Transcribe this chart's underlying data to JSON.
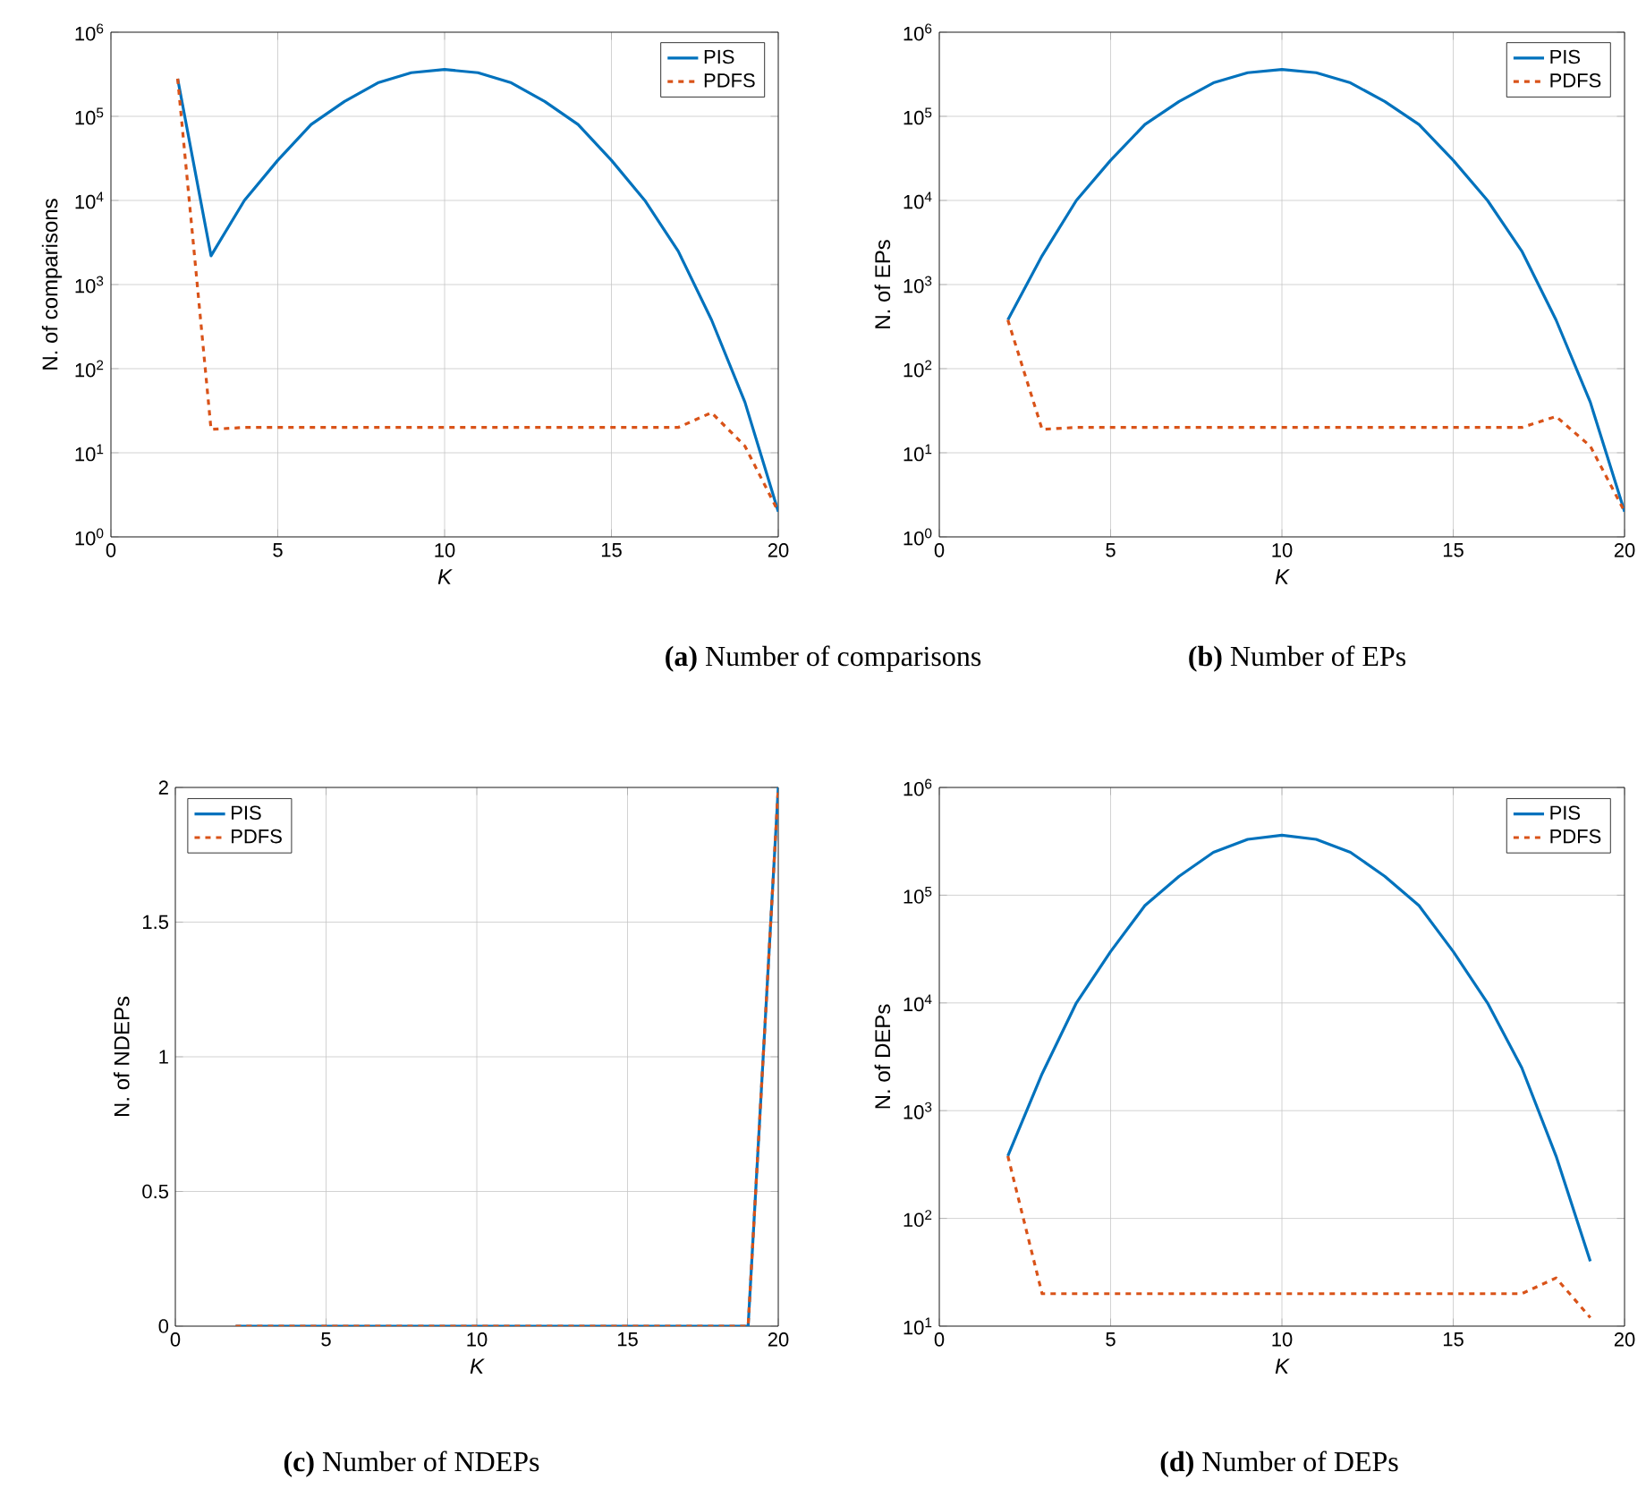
{
  "chart_data": [
    {
      "type": "line",
      "title": "**(a)** Number of comparisons",
      "xlabel": "K",
      "ylabel": "N. of comparisons",
      "x": [
        2,
        3,
        4,
        5,
        6,
        7,
        8,
        9,
        10,
        11,
        12,
        13,
        14,
        15,
        16,
        17,
        18,
        19,
        20
      ],
      "log": "y",
      "grid": true,
      "legend": "top right",
      "xlim": [
        0,
        20
      ],
      "xticks": [
        0,
        5,
        10,
        15,
        20
      ],
      "ylim": [
        1,
        1000000
      ],
      "yticks": [
        {
          "value": 1,
          "label": "10$^{0}$"
        },
        {
          "value": 10,
          "label": "10$^{1}$"
        },
        {
          "value": 100,
          "label": "10$^{2}$"
        },
        {
          "value": 1000,
          "label": "10$^{3}$"
        },
        {
          "value": 10000,
          "label": "10$^{4}$"
        },
        {
          "value": 100000,
          "label": "10$^{5}$"
        },
        {
          "value": 1000000,
          "label": "10$^{6}$"
        }
      ],
      "series": [
        {
          "name": "PIS",
          "color": "#0072bd",
          "line_style": "solid",
          "values": [
            280000,
            2200,
            10000,
            30000,
            80000,
            150000,
            250000,
            330000,
            360000,
            330000,
            250000,
            150000,
            80000,
            30000,
            10000,
            2500,
            380,
            40,
            2
          ]
        },
        {
          "name": "PDFS",
          "color": "#d95319",
          "line_style": "dashed",
          "values": [
            280000,
            19,
            20,
            20,
            20,
            20,
            20,
            20,
            20,
            20,
            20,
            20,
            20,
            20,
            20,
            20,
            30,
            12,
            2
          ]
        }
      ]
    },
    {
      "type": "line",
      "title": "**(b)** Number of EPs",
      "xlabel": "K",
      "ylabel": "N. of EPs",
      "x": [
        2,
        3,
        4,
        5,
        6,
        7,
        8,
        9,
        10,
        11,
        12,
        13,
        14,
        15,
        16,
        17,
        18,
        19,
        20
      ],
      "log": "y",
      "grid": true,
      "legend": "top right",
      "xlim": [
        0,
        20
      ],
      "xticks": [
        0,
        5,
        10,
        15,
        20
      ],
      "ylim": [
        1,
        1000000
      ],
      "yticks": [
        {
          "value": 1,
          "label": "10$^{0}$"
        },
        {
          "value": 10,
          "label": "10$^{1}$"
        },
        {
          "value": 100,
          "label": "10$^{2}$"
        },
        {
          "value": 1000,
          "label": "10$^{3}$"
        },
        {
          "value": 10000,
          "label": "10$^{4}$"
        },
        {
          "value": 100000,
          "label": "10$^{5}$"
        },
        {
          "value": 1000000,
          "label": "10$^{6}$"
        }
      ],
      "series": [
        {
          "name": "PIS",
          "color": "#0072bd",
          "line_style": "solid",
          "values": [
            380,
            2200,
            10000,
            30000,
            80000,
            150000,
            250000,
            330000,
            360000,
            330000,
            250000,
            150000,
            80000,
            30000,
            10000,
            2500,
            380,
            40,
            2
          ]
        },
        {
          "name": "PDFS",
          "color": "#d95319",
          "line_style": "dashed",
          "values": [
            380,
            19,
            20,
            20,
            20,
            20,
            20,
            20,
            20,
            20,
            20,
            20,
            20,
            20,
            20,
            20,
            27,
            12,
            2
          ]
        }
      ]
    },
    {
      "type": "line",
      "title": "**(c)** Number of NDEPs",
      "xlabel": "K",
      "ylabel": "N. of NDEPs",
      "x": [
        2,
        3,
        4,
        5,
        6,
        7,
        8,
        9,
        10,
        11,
        12,
        13,
        14,
        15,
        16,
        17,
        18,
        19,
        20
      ],
      "grid": true,
      "legend": "top left",
      "xlim": [
        0,
        20
      ],
      "xticks": [
        0,
        5,
        10,
        15,
        20
      ],
      "ylim": [
        0,
        2
      ],
      "yticks": [
        0,
        0.5,
        1,
        1.5,
        2
      ],
      "series": [
        {
          "name": "PIS",
          "color": "#0072bd",
          "line_style": "solid",
          "values": [
            0,
            0,
            0,
            0,
            0,
            0,
            0,
            0,
            0,
            0,
            0,
            0,
            0,
            0,
            0,
            0,
            0,
            0,
            2
          ]
        },
        {
          "name": "PDFS",
          "color": "#d95319",
          "line_style": "dashed",
          "values": [
            0,
            0,
            0,
            0,
            0,
            0,
            0,
            0,
            0,
            0,
            0,
            0,
            0,
            0,
            0,
            0,
            0,
            0,
            2
          ]
        }
      ]
    },
    {
      "type": "line",
      "title": "**(d)** Number of DEPs",
      "xlabel": "K",
      "ylabel": "N. of DEPs",
      "x": [
        2,
        3,
        4,
        5,
        6,
        7,
        8,
        9,
        10,
        11,
        12,
        13,
        14,
        15,
        16,
        17,
        18,
        19
      ],
      "log": "y",
      "grid": true,
      "legend": "top right",
      "xlim": [
        0,
        20
      ],
      "xticks": [
        0,
        5,
        10,
        15,
        20
      ],
      "ylim": [
        10,
        1000000
      ],
      "yticks": [
        {
          "value": 10,
          "label": "10$^{1}$"
        },
        {
          "value": 100,
          "label": "10$^{2}$"
        },
        {
          "value": 1000,
          "label": "10$^{3}$"
        },
        {
          "value": 10000,
          "label": "10$^{4}$"
        },
        {
          "value": 100000,
          "label": "10$^{5}$"
        },
        {
          "value": 1000000,
          "label": "10$^{6}$"
        }
      ],
      "series": [
        {
          "name": "PIS",
          "color": "#0072bd",
          "line_style": "solid",
          "values": [
            380,
            2200,
            10000,
            30000,
            80000,
            150000,
            250000,
            330000,
            360000,
            330000,
            250000,
            150000,
            80000,
            30000,
            10000,
            2500,
            380,
            40
          ]
        },
        {
          "name": "PDFS",
          "color": "#d95319",
          "line_style": "dashed",
          "values": [
            380,
            20,
            20,
            20,
            20,
            20,
            20,
            20,
            20,
            20,
            20,
            20,
            20,
            20,
            20,
            20,
            28,
            12
          ]
        }
      ]
    }
  ]
}
